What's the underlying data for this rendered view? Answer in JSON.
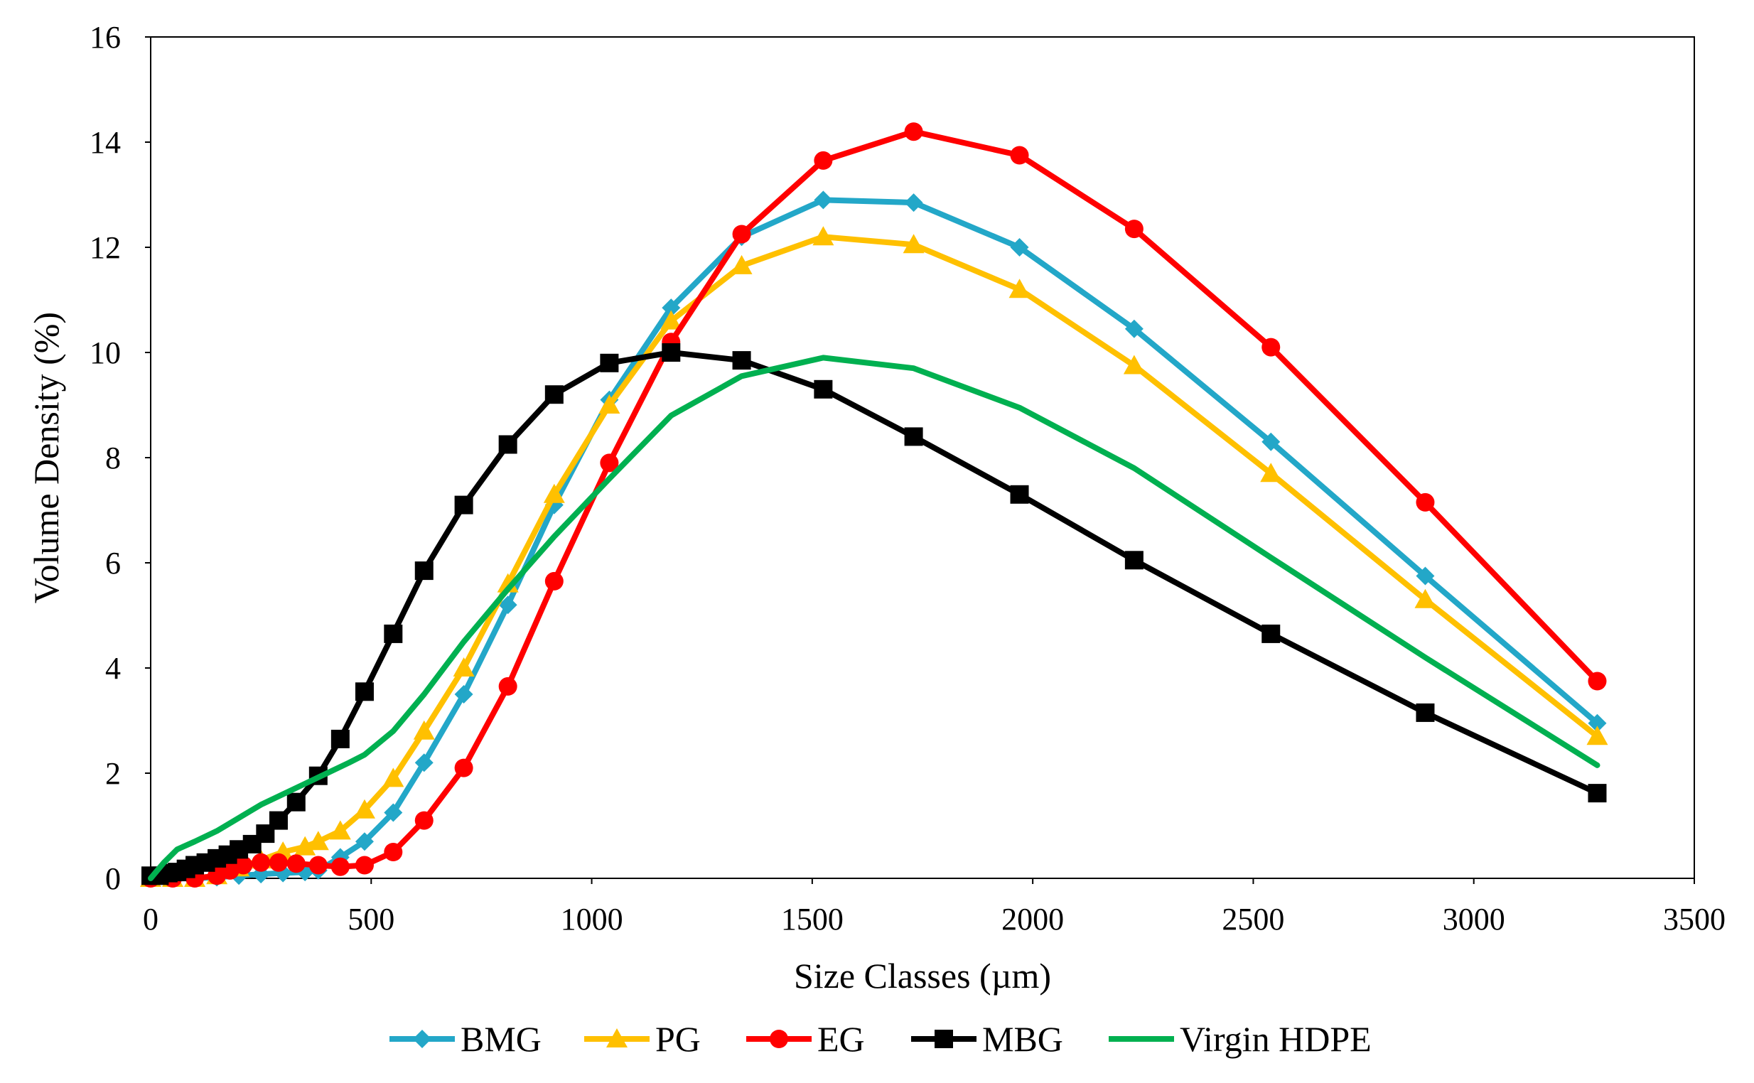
{
  "chart_data": {
    "type": "line",
    "title": "",
    "xlabel": "Size Classes (µm)",
    "ylabel": "Volume Density (%)",
    "xlim": [
      0,
      3500
    ],
    "ylim": [
      0,
      16
    ],
    "xticks": [
      0,
      500,
      1000,
      1500,
      2000,
      2500,
      3000,
      3500
    ],
    "yticks": [
      0,
      2,
      4,
      6,
      8,
      10,
      12,
      14,
      16
    ],
    "grid": false,
    "legend_position": "bottom",
    "series": [
      {
        "name": "BMG",
        "color": "#23A7C8",
        "marker": "diamond",
        "x": [
          0,
          50,
          100,
          150,
          200,
          250,
          300,
          350,
          380,
          430,
          485,
          550,
          620,
          710,
          810,
          915,
          1040,
          1180,
          1340,
          1525,
          1730,
          1970,
          2230,
          2540,
          2890,
          3280
        ],
        "y": [
          0,
          0,
          0,
          0.02,
          0.05,
          0.08,
          0.1,
          0.12,
          0.15,
          0.4,
          0.7,
          1.25,
          2.2,
          3.5,
          5.2,
          7.1,
          9.1,
          10.85,
          12.2,
          12.9,
          12.85,
          12.0,
          10.45,
          8.3,
          5.75,
          2.95
        ]
      },
      {
        "name": "PG",
        "color": "#FFC000",
        "marker": "triangle",
        "x": [
          0,
          50,
          100,
          150,
          200,
          250,
          300,
          350,
          380,
          430,
          485,
          550,
          620,
          710,
          810,
          915,
          1040,
          1180,
          1340,
          1525,
          1730,
          1970,
          2230,
          2540,
          2890,
          3280
        ],
        "y": [
          0,
          0,
          0,
          0.05,
          0.2,
          0.35,
          0.5,
          0.6,
          0.7,
          0.9,
          1.3,
          1.9,
          2.8,
          4.0,
          5.6,
          7.3,
          9.0,
          10.6,
          11.65,
          12.2,
          12.05,
          11.2,
          9.75,
          7.7,
          5.3,
          2.7
        ]
      },
      {
        "name": "EG",
        "color": "#FF0000",
        "marker": "circle",
        "x": [
          0,
          50,
          100,
          150,
          180,
          210,
          250,
          290,
          330,
          380,
          430,
          485,
          550,
          620,
          710,
          810,
          915,
          1040,
          1180,
          1340,
          1525,
          1730,
          1970,
          2230,
          2540,
          2890,
          3280
        ],
        "y": [
          0,
          0,
          0,
          0.05,
          0.15,
          0.25,
          0.3,
          0.3,
          0.28,
          0.25,
          0.22,
          0.25,
          0.5,
          1.1,
          2.1,
          3.65,
          5.65,
          7.9,
          10.2,
          12.25,
          13.65,
          14.2,
          13.75,
          12.35,
          10.1,
          7.15,
          3.75
        ]
      },
      {
        "name": "MBG",
        "color": "#000000",
        "marker": "square",
        "x": [
          0,
          20,
          40,
          60,
          80,
          100,
          125,
          150,
          175,
          200,
          230,
          260,
          290,
          330,
          380,
          430,
          485,
          550,
          620,
          710,
          810,
          915,
          1040,
          1180,
          1340,
          1525,
          1730,
          1970,
          2230,
          2540,
          2890,
          3280
        ],
        "y": [
          0.05,
          0.05,
          0.1,
          0.12,
          0.18,
          0.25,
          0.3,
          0.38,
          0.45,
          0.55,
          0.65,
          0.85,
          1.1,
          1.45,
          1.95,
          2.65,
          3.55,
          4.65,
          5.85,
          7.1,
          8.25,
          9.2,
          9.8,
          10.0,
          9.85,
          9.3,
          8.4,
          7.3,
          6.05,
          4.65,
          3.15,
          1.62
        ]
      },
      {
        "name": "Virgin HDPE",
        "color": "#00B050",
        "marker": "none",
        "x": [
          0,
          30,
          60,
          100,
          150,
          200,
          250,
          300,
          350,
          400,
          450,
          485,
          550,
          620,
          710,
          810,
          915,
          1040,
          1180,
          1340,
          1525,
          1730,
          1970,
          2230,
          2540,
          2890,
          3280
        ],
        "y": [
          0,
          0.3,
          0.55,
          0.7,
          0.9,
          1.15,
          1.4,
          1.6,
          1.8,
          2.0,
          2.2,
          2.35,
          2.8,
          3.5,
          4.5,
          5.5,
          6.5,
          7.6,
          8.8,
          9.55,
          9.9,
          9.7,
          8.95,
          7.8,
          6.1,
          4.2,
          2.15
        ]
      }
    ]
  }
}
